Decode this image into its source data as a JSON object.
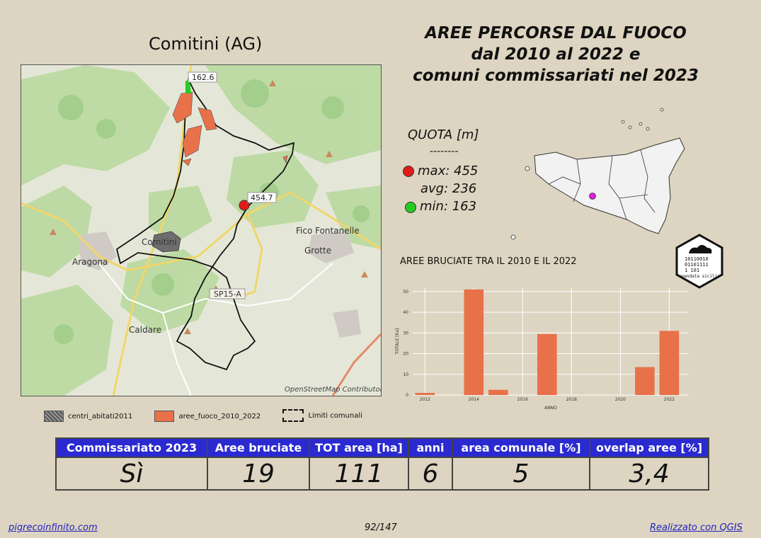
{
  "comune_title": "Comitini (AG)",
  "main_title": [
    "AREE PERCORSE DAL FUOCO",
    "dal 2010 al 2022 e",
    "comuni commissariati nel 2023"
  ],
  "map": {
    "labels": {
      "peak_north": "162.6",
      "peak_center": "454.7",
      "fico": "Fico Fontanelle",
      "grotte": "Grotte",
      "aragona": "Aragona",
      "comitini": "Comitini",
      "caldare": "Caldare",
      "road": "SP15-A",
      "attribution": "OpenStreetMap Contributor"
    }
  },
  "quota": {
    "title": "QUOTA [m]",
    "separator": "--------",
    "max": "max: 455",
    "avg": "avg: 236",
    "min": "min: 163",
    "max_color": "#e31a1c",
    "min_color": "#22cc22"
  },
  "logo": {
    "text": "opendata sicilia"
  },
  "chart_title": "AREE BRUCIATE TRA IL 2010 E IL 2022",
  "chart_data": {
    "type": "bar",
    "title": "AREE BRUCIATE TRA IL 2010 E IL 2022",
    "xlabel": "ANNO",
    "ylabel": "TOTALE [ha]",
    "x": [
      2012,
      2014,
      2015,
      2017,
      2021,
      2022
    ],
    "values": [
      1,
      51,
      2.5,
      29.5,
      13.5,
      31
    ],
    "xlim": [
      2011.5,
      2022.8
    ],
    "ylim": [
      0,
      52
    ],
    "xticks": [
      2012,
      2014,
      2016,
      2018,
      2020,
      2022
    ],
    "yticks": [
      0,
      10,
      20,
      30,
      40,
      50
    ],
    "bar_color": "#e8714a",
    "grid": true
  },
  "legend": {
    "centri": "centri_abitati2011",
    "fuoco": "aree_fuoco_2010_2022",
    "limiti": "Limiti comunali",
    "fuoco_color": "#e8714a"
  },
  "stats": {
    "headers": [
      "Commissariato 2023",
      "Aree bruciate",
      "TOT area [ha]",
      "anni",
      "area comunale [%]",
      "overlap aree [%]"
    ],
    "values": [
      "Sì",
      "19",
      "111",
      "6",
      "5",
      "3,4"
    ]
  },
  "footer": {
    "left": "pigrecoinfinito.com",
    "mid": "92/147",
    "right": "Realizzato con QGIS"
  }
}
